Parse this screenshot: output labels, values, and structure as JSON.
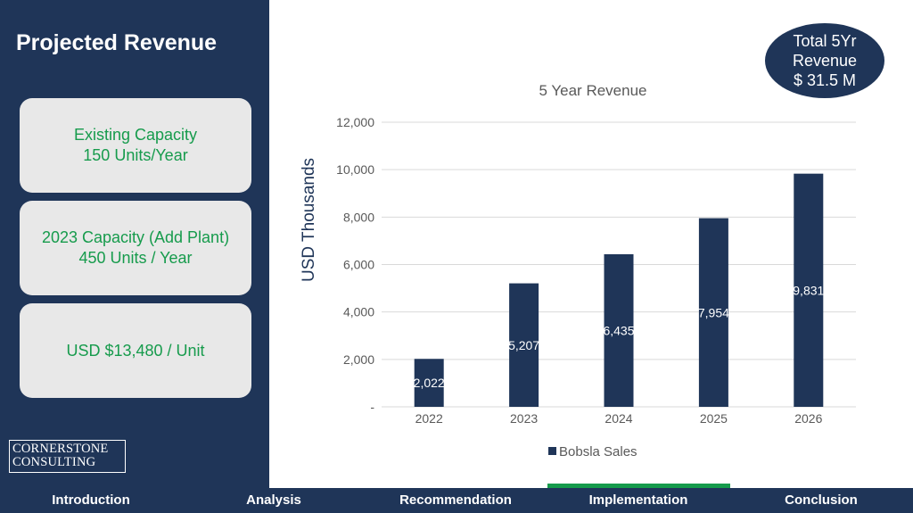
{
  "title": "Projected Revenue",
  "cards": [
    {
      "lines": [
        "Existing Capacity",
        "150 Units/Year"
      ]
    },
    {
      "lines": [
        "2023 Capacity (Add Plant)",
        "450 Units / Year"
      ]
    },
    {
      "lines": [
        "USD $13,480 / Unit"
      ]
    }
  ],
  "logo": {
    "line1": "CORNERSTONE",
    "line2": "CONSULTING"
  },
  "badge": {
    "line1": "Total 5Yr",
    "line2": "Revenue",
    "line3": "$ 31.5 M"
  },
  "nav": {
    "items": [
      "Introduction",
      "Analysis",
      "Recommendation",
      "Implementation",
      "Conclusion"
    ],
    "active": "Implementation"
  },
  "colors": {
    "navy": "#1f3558",
    "green": "#169b4c",
    "card_bg": "#e8e8e8"
  },
  "chart_data": {
    "type": "bar",
    "title": "5 Year Revenue",
    "xlabel": "",
    "ylabel": "USD Thousands",
    "categories": [
      "2022",
      "2023",
      "2024",
      "2025",
      "2026"
    ],
    "series": [
      {
        "name": "Bobsla Sales",
        "values": [
          2022,
          5207,
          6435,
          7954,
          9831
        ],
        "labels": [
          "2,022",
          "5,207",
          "6,435",
          "7,954",
          "9,831"
        ]
      }
    ],
    "ylim": [
      0,
      12000
    ],
    "ytick_values": [
      0,
      2000,
      4000,
      6000,
      8000,
      10000,
      12000
    ],
    "ytick_labels": [
      "-",
      "2,000",
      "4,000",
      "6,000",
      "8,000",
      "10,000",
      "12,000"
    ],
    "grid": true,
    "legend": "bottom",
    "bar_color": "#1f3558"
  }
}
